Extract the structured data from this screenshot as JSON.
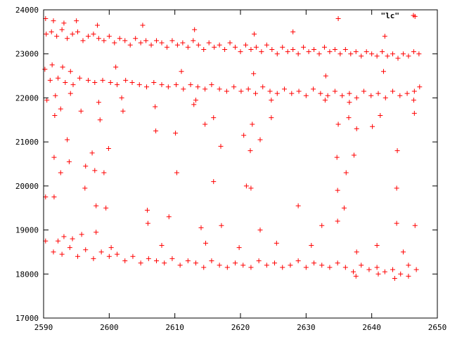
{
  "chart_data": {
    "type": "scatter",
    "title": "",
    "xlabel": "",
    "ylabel": "",
    "xlim": [
      2590,
      2650
    ],
    "ylim": [
      17000,
      24000
    ],
    "x_ticks": [
      2590,
      2600,
      2610,
      2620,
      2630,
      2640,
      2650
    ],
    "y_ticks": [
      17000,
      18000,
      19000,
      20000,
      21000,
      22000,
      23000,
      24000
    ],
    "grid": false,
    "legend_position": "top-right",
    "marker": "+",
    "series": [
      {
        "name": "\"lc\"",
        "color": "#ff0000",
        "points": [
          [
            2590.4,
            23450
          ],
          [
            2591.2,
            23500
          ],
          [
            2592.0,
            23400
          ],
          [
            2592.8,
            23550
          ],
          [
            2593.6,
            23350
          ],
          [
            2594.4,
            23450
          ],
          [
            2595.2,
            23500
          ],
          [
            2596.0,
            23300
          ],
          [
            2596.8,
            23400
          ],
          [
            2597.6,
            23450
          ],
          [
            2598.4,
            23350
          ],
          [
            2599.2,
            23300
          ],
          [
            2600.0,
            23400
          ],
          [
            2600.8,
            23250
          ],
          [
            2601.6,
            23350
          ],
          [
            2602.4,
            23300
          ],
          [
            2603.2,
            23200
          ],
          [
            2604.0,
            23350
          ],
          [
            2604.8,
            23250
          ],
          [
            2605.6,
            23300
          ],
          [
            2606.4,
            23200
          ],
          [
            2607.2,
            23300
          ],
          [
            2608.0,
            23250
          ],
          [
            2608.8,
            23150
          ],
          [
            2609.6,
            23300
          ],
          [
            2610.4,
            23200
          ],
          [
            2611.2,
            23250
          ],
          [
            2612.0,
            23150
          ],
          [
            2612.8,
            23300
          ],
          [
            2613.6,
            23200
          ],
          [
            2614.4,
            23100
          ],
          [
            2615.2,
            23250
          ],
          [
            2616.0,
            23150
          ],
          [
            2616.8,
            23200
          ],
          [
            2617.6,
            23100
          ],
          [
            2618.4,
            23250
          ],
          [
            2619.2,
            23150
          ],
          [
            2620.0,
            23050
          ],
          [
            2620.8,
            23200
          ],
          [
            2621.6,
            23100
          ],
          [
            2622.4,
            23150
          ],
          [
            2623.2,
            23050
          ],
          [
            2624.0,
            23200
          ],
          [
            2624.8,
            23100
          ],
          [
            2625.6,
            23000
          ],
          [
            2626.4,
            23150
          ],
          [
            2627.2,
            23050
          ],
          [
            2628.0,
            23100
          ],
          [
            2628.8,
            23000
          ],
          [
            2629.6,
            23150
          ],
          [
            2630.4,
            23050
          ],
          [
            2631.2,
            23100
          ],
          [
            2632.0,
            23000
          ],
          [
            2632.8,
            23150
          ],
          [
            2633.6,
            23050
          ],
          [
            2634.4,
            23100
          ],
          [
            2635.2,
            23000
          ],
          [
            2636.0,
            23100
          ],
          [
            2636.8,
            23000
          ],
          [
            2637.6,
            23050
          ],
          [
            2638.4,
            22950
          ],
          [
            2639.2,
            23050
          ],
          [
            2640.0,
            23000
          ],
          [
            2640.8,
            22950
          ],
          [
            2641.6,
            23050
          ],
          [
            2642.4,
            22950
          ],
          [
            2643.2,
            23000
          ],
          [
            2644.0,
            22900
          ],
          [
            2644.8,
            23000
          ],
          [
            2645.6,
            22950
          ],
          [
            2646.4,
            23050
          ],
          [
            2647.2,
            23000
          ],
          [
            2590.3,
            23800
          ],
          [
            2591.5,
            23750
          ],
          [
            2593.1,
            23700
          ],
          [
            2595.0,
            23750
          ],
          [
            2598.2,
            23650
          ],
          [
            2605.1,
            23650
          ],
          [
            2613.0,
            23550
          ],
          [
            2622.1,
            23450
          ],
          [
            2628.0,
            23500
          ],
          [
            2634.9,
            23800
          ],
          [
            2642.0,
            23400
          ],
          [
            2646.6,
            23850
          ],
          [
            2591.0,
            22400
          ],
          [
            2592.2,
            22450
          ],
          [
            2593.3,
            22350
          ],
          [
            2594.5,
            22300
          ],
          [
            2595.5,
            22450
          ],
          [
            2596.8,
            22400
          ],
          [
            2597.8,
            22350
          ],
          [
            2599.0,
            22400
          ],
          [
            2600.2,
            22350
          ],
          [
            2601.2,
            22300
          ],
          [
            2602.5,
            22400
          ],
          [
            2603.5,
            22350
          ],
          [
            2604.6,
            22300
          ],
          [
            2605.7,
            22250
          ],
          [
            2606.8,
            22350
          ],
          [
            2608.0,
            22300
          ],
          [
            2609.0,
            22250
          ],
          [
            2610.2,
            22300
          ],
          [
            2611.3,
            22200
          ],
          [
            2612.4,
            22300
          ],
          [
            2613.5,
            22250
          ],
          [
            2614.6,
            22200
          ],
          [
            2615.6,
            22300
          ],
          [
            2616.8,
            22200
          ],
          [
            2617.9,
            22150
          ],
          [
            2619.0,
            22250
          ],
          [
            2620.1,
            22150
          ],
          [
            2621.2,
            22200
          ],
          [
            2622.3,
            22100
          ],
          [
            2623.4,
            22250
          ],
          [
            2624.5,
            22150
          ],
          [
            2625.6,
            22100
          ],
          [
            2626.7,
            22200
          ],
          [
            2627.8,
            22100
          ],
          [
            2628.9,
            22150
          ],
          [
            2630.0,
            22050
          ],
          [
            2631.1,
            22200
          ],
          [
            2632.2,
            22100
          ],
          [
            2633.3,
            22050
          ],
          [
            2634.4,
            22150
          ],
          [
            2635.5,
            22050
          ],
          [
            2636.6,
            22100
          ],
          [
            2637.7,
            22000
          ],
          [
            2638.8,
            22150
          ],
          [
            2639.9,
            22050
          ],
          [
            2641.0,
            22100
          ],
          [
            2642.1,
            22000
          ],
          [
            2643.2,
            22150
          ],
          [
            2644.3,
            22050
          ],
          [
            2645.4,
            22100
          ],
          [
            2646.5,
            22150
          ],
          [
            2647.3,
            22250
          ],
          [
            2590.2,
            22650
          ],
          [
            2591.3,
            22750
          ],
          [
            2592.9,
            22700
          ],
          [
            2594.1,
            22600
          ],
          [
            2601.0,
            22700
          ],
          [
            2611.0,
            22600
          ],
          [
            2622.0,
            22550
          ],
          [
            2633.0,
            22500
          ],
          [
            2641.8,
            22600
          ],
          [
            2591.8,
            22050
          ],
          [
            2594.1,
            22100
          ],
          [
            2601.9,
            22000
          ],
          [
            2613.2,
            21950
          ],
          [
            2624.7,
            21950
          ],
          [
            2636.6,
            21900
          ],
          [
            2646.4,
            21950
          ],
          [
            2590.5,
            21950
          ],
          [
            2591.7,
            21600
          ],
          [
            2592.6,
            21750
          ],
          [
            2593.6,
            21050
          ],
          [
            2595.7,
            21700
          ],
          [
            2597.4,
            20750
          ],
          [
            2598.4,
            21900
          ],
          [
            2598.6,
            21500
          ],
          [
            2599.9,
            20850
          ],
          [
            2602.1,
            21700
          ],
          [
            2607.1,
            21250
          ],
          [
            2607.0,
            21800
          ],
          [
            2610.1,
            21200
          ],
          [
            2612.9,
            21850
          ],
          [
            2614.6,
            21400
          ],
          [
            2615.9,
            21550
          ],
          [
            2617.0,
            20900
          ],
          [
            2620.5,
            21150
          ],
          [
            2621.5,
            20800
          ],
          [
            2621.8,
            21400
          ],
          [
            2623.0,
            21050
          ],
          [
            2624.7,
            21550
          ],
          [
            2632.9,
            21950
          ],
          [
            2634.9,
            21400
          ],
          [
            2636.5,
            21550
          ],
          [
            2637.7,
            21300
          ],
          [
            2640.1,
            21350
          ],
          [
            2641.3,
            21600
          ],
          [
            2643.9,
            20800
          ],
          [
            2646.5,
            21650
          ],
          [
            2591.6,
            20650
          ],
          [
            2592.6,
            20300
          ],
          [
            2593.9,
            20550
          ],
          [
            2596.4,
            20450
          ],
          [
            2597.8,
            20350
          ],
          [
            2599.2,
            20300
          ],
          [
            2610.3,
            20300
          ],
          [
            2615.9,
            20100
          ],
          [
            2620.9,
            20000
          ],
          [
            2634.7,
            20650
          ],
          [
            2636.1,
            20300
          ],
          [
            2637.3,
            20700
          ],
          [
            2590.3,
            19750
          ],
          [
            2591.6,
            19750
          ],
          [
            2596.3,
            19950
          ],
          [
            2598.0,
            19550
          ],
          [
            2599.5,
            19500
          ],
          [
            2605.8,
            19450
          ],
          [
            2609.1,
            19300
          ],
          [
            2621.6,
            19950
          ],
          [
            2628.8,
            19550
          ],
          [
            2634.8,
            19900
          ],
          [
            2635.8,
            19500
          ],
          [
            2643.8,
            19950
          ],
          [
            2593.1,
            18850
          ],
          [
            2595.8,
            18900
          ],
          [
            2598.0,
            18950
          ],
          [
            2605.9,
            19150
          ],
          [
            2614.0,
            19050
          ],
          [
            2617.1,
            19100
          ],
          [
            2623.0,
            19000
          ],
          [
            2632.4,
            19100
          ],
          [
            2634.8,
            19200
          ],
          [
            2643.8,
            19150
          ],
          [
            2646.6,
            19100
          ],
          [
            2590.3,
            18750
          ],
          [
            2591.5,
            18500
          ],
          [
            2592.8,
            18450
          ],
          [
            2594.0,
            18600
          ],
          [
            2595.2,
            18400
          ],
          [
            2596.4,
            18550
          ],
          [
            2597.6,
            18350
          ],
          [
            2598.8,
            18500
          ],
          [
            2600.0,
            18400
          ],
          [
            2601.2,
            18450
          ],
          [
            2602.4,
            18300
          ],
          [
            2603.6,
            18400
          ],
          [
            2604.8,
            18250
          ],
          [
            2606.0,
            18350
          ],
          [
            2607.2,
            18300
          ],
          [
            2608.4,
            18250
          ],
          [
            2609.6,
            18350
          ],
          [
            2610.8,
            18200
          ],
          [
            2612.0,
            18300
          ],
          [
            2613.2,
            18250
          ],
          [
            2614.4,
            18150
          ],
          [
            2615.6,
            18300
          ],
          [
            2616.8,
            18200
          ],
          [
            2618.0,
            18150
          ],
          [
            2619.2,
            18250
          ],
          [
            2620.4,
            18200
          ],
          [
            2621.6,
            18150
          ],
          [
            2622.8,
            18300
          ],
          [
            2624.0,
            18200
          ],
          [
            2625.2,
            18250
          ],
          [
            2626.4,
            18150
          ],
          [
            2627.6,
            18200
          ],
          [
            2628.8,
            18300
          ],
          [
            2630.0,
            18150
          ],
          [
            2631.2,
            18250
          ],
          [
            2632.4,
            18200
          ],
          [
            2633.6,
            18150
          ],
          [
            2634.8,
            18250
          ],
          [
            2636.0,
            18150
          ],
          [
            2637.2,
            18050
          ],
          [
            2638.4,
            18200
          ],
          [
            2639.6,
            18100
          ],
          [
            2640.8,
            18150
          ],
          [
            2642.0,
            18050
          ],
          [
            2643.2,
            18100
          ],
          [
            2644.4,
            18000
          ],
          [
            2645.6,
            18200
          ],
          [
            2646.8,
            18100
          ],
          [
            2592.2,
            18750
          ],
          [
            2594.4,
            18800
          ],
          [
            2600.3,
            18600
          ],
          [
            2608.0,
            18650
          ],
          [
            2614.7,
            18700
          ],
          [
            2619.8,
            18600
          ],
          [
            2625.5,
            18700
          ],
          [
            2630.8,
            18650
          ],
          [
            2637.7,
            18500
          ],
          [
            2640.8,
            18650
          ],
          [
            2644.8,
            18500
          ],
          [
            2637.6,
            17950
          ],
          [
            2641.0,
            18000
          ],
          [
            2643.5,
            17900
          ],
          [
            2645.6,
            17950
          ]
        ]
      }
    ]
  }
}
